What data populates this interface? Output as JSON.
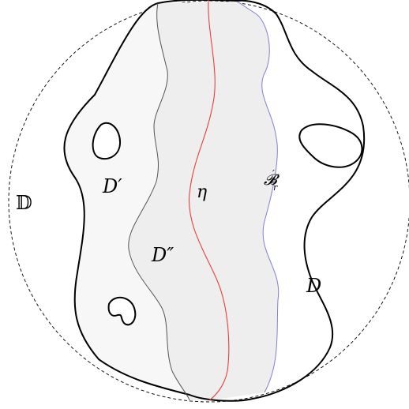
{
  "labels": {
    "disk": "𝔻",
    "domain_d": "D",
    "domain_d_prime": "D′",
    "domain_d_double_prime": "D″",
    "curve_eta": "η",
    "set_b_r_prime": "𝓑",
    "set_b_r_prime_sup": "′",
    "set_b_r_prime_sub": "r"
  },
  "colors": {
    "outline": "#000000",
    "eta_curve": "#e8413b",
    "b_boundary": "#8080d0",
    "d_prime_fill": "#f7f7f7",
    "d_double_prime_fill": "#eeeeee"
  }
}
